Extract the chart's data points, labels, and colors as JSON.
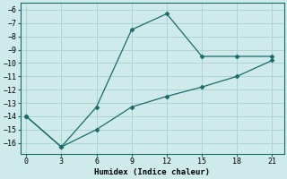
{
  "line1_x": [
    0,
    3,
    6,
    9,
    12,
    15,
    18,
    21
  ],
  "line1_y": [
    -14.0,
    -16.3,
    -13.3,
    -7.5,
    -6.3,
    -9.5,
    -9.5,
    -9.5
  ],
  "line2_x": [
    0,
    3,
    6,
    9,
    12,
    15,
    18,
    21
  ],
  "line2_y": [
    -14.0,
    -16.3,
    -15.0,
    -13.3,
    -12.5,
    -11.8,
    -11.0,
    -9.8
  ],
  "line_color": "#1a6b6b",
  "bg_color": "#ceeaea",
  "grid_color": "#afd4d4",
  "xlabel": "Humidex (Indice chaleur)",
  "xlim": [
    -0.5,
    22
  ],
  "ylim": [
    -16.8,
    -5.5
  ],
  "xticks": [
    0,
    3,
    6,
    9,
    12,
    15,
    18,
    21
  ],
  "yticks": [
    -16,
    -15,
    -14,
    -13,
    -12,
    -11,
    -10,
    -9,
    -8,
    -7,
    -6
  ],
  "marker": "D",
  "markersize": 2.5,
  "linewidth": 0.9,
  "tick_fontsize": 6,
  "xlabel_fontsize": 6.5
}
